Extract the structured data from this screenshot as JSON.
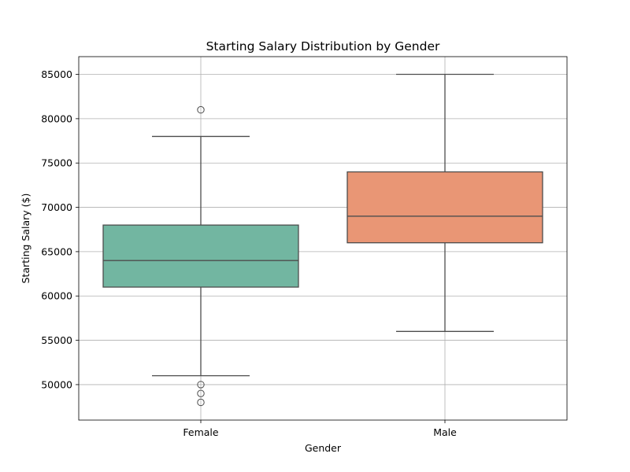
{
  "chart_data": {
    "type": "box",
    "title": "Starting Salary Distribution by Gender",
    "xlabel": "Gender",
    "ylabel": "Starting Salary ($)",
    "ylim": [
      46000,
      87000
    ],
    "yticks": [
      50000,
      55000,
      60000,
      65000,
      70000,
      75000,
      80000,
      85000
    ],
    "grid": true,
    "categories": [
      "Female",
      "Male"
    ],
    "boxes": [
      {
        "category": "Female",
        "color": "#72b6a1",
        "whisker_low": 51000,
        "q1": 61000,
        "median": 64000,
        "q3": 68000,
        "whisker_high": 78000,
        "outliers": [
          81000,
          50000,
          49000,
          48000
        ]
      },
      {
        "category": "Male",
        "color": "#e99675",
        "whisker_low": 56000,
        "q1": 66000,
        "median": 69000,
        "q3": 74000,
        "whisker_high": 85000,
        "outliers": []
      }
    ]
  }
}
